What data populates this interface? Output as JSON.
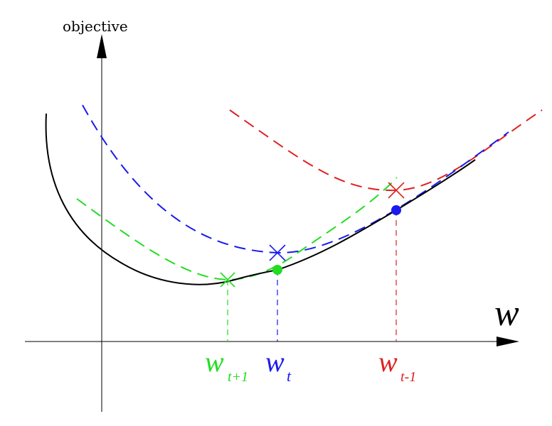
{
  "axes": {
    "y_label": "objective",
    "x_label": "w"
  },
  "markers": [
    {
      "id": "w_t_plus_1",
      "base": "w",
      "sub": "t+1",
      "color": "#22dd22"
    },
    {
      "id": "w_t",
      "base": "w",
      "sub": "t",
      "color": "#1a1aee"
    },
    {
      "id": "w_t_minus_1",
      "base": "w",
      "sub": "t-1",
      "color": "#dd2222"
    }
  ],
  "curves": {
    "objective": {
      "color": "#000000",
      "style": "solid"
    },
    "surrogate_t_plus_1": {
      "color": "#22dd22",
      "style": "dashed"
    },
    "surrogate_t": {
      "color": "#1a1aee",
      "style": "dashed"
    },
    "surrogate_t_minus_1": {
      "color": "#dd2222",
      "style": "dashed"
    }
  }
}
